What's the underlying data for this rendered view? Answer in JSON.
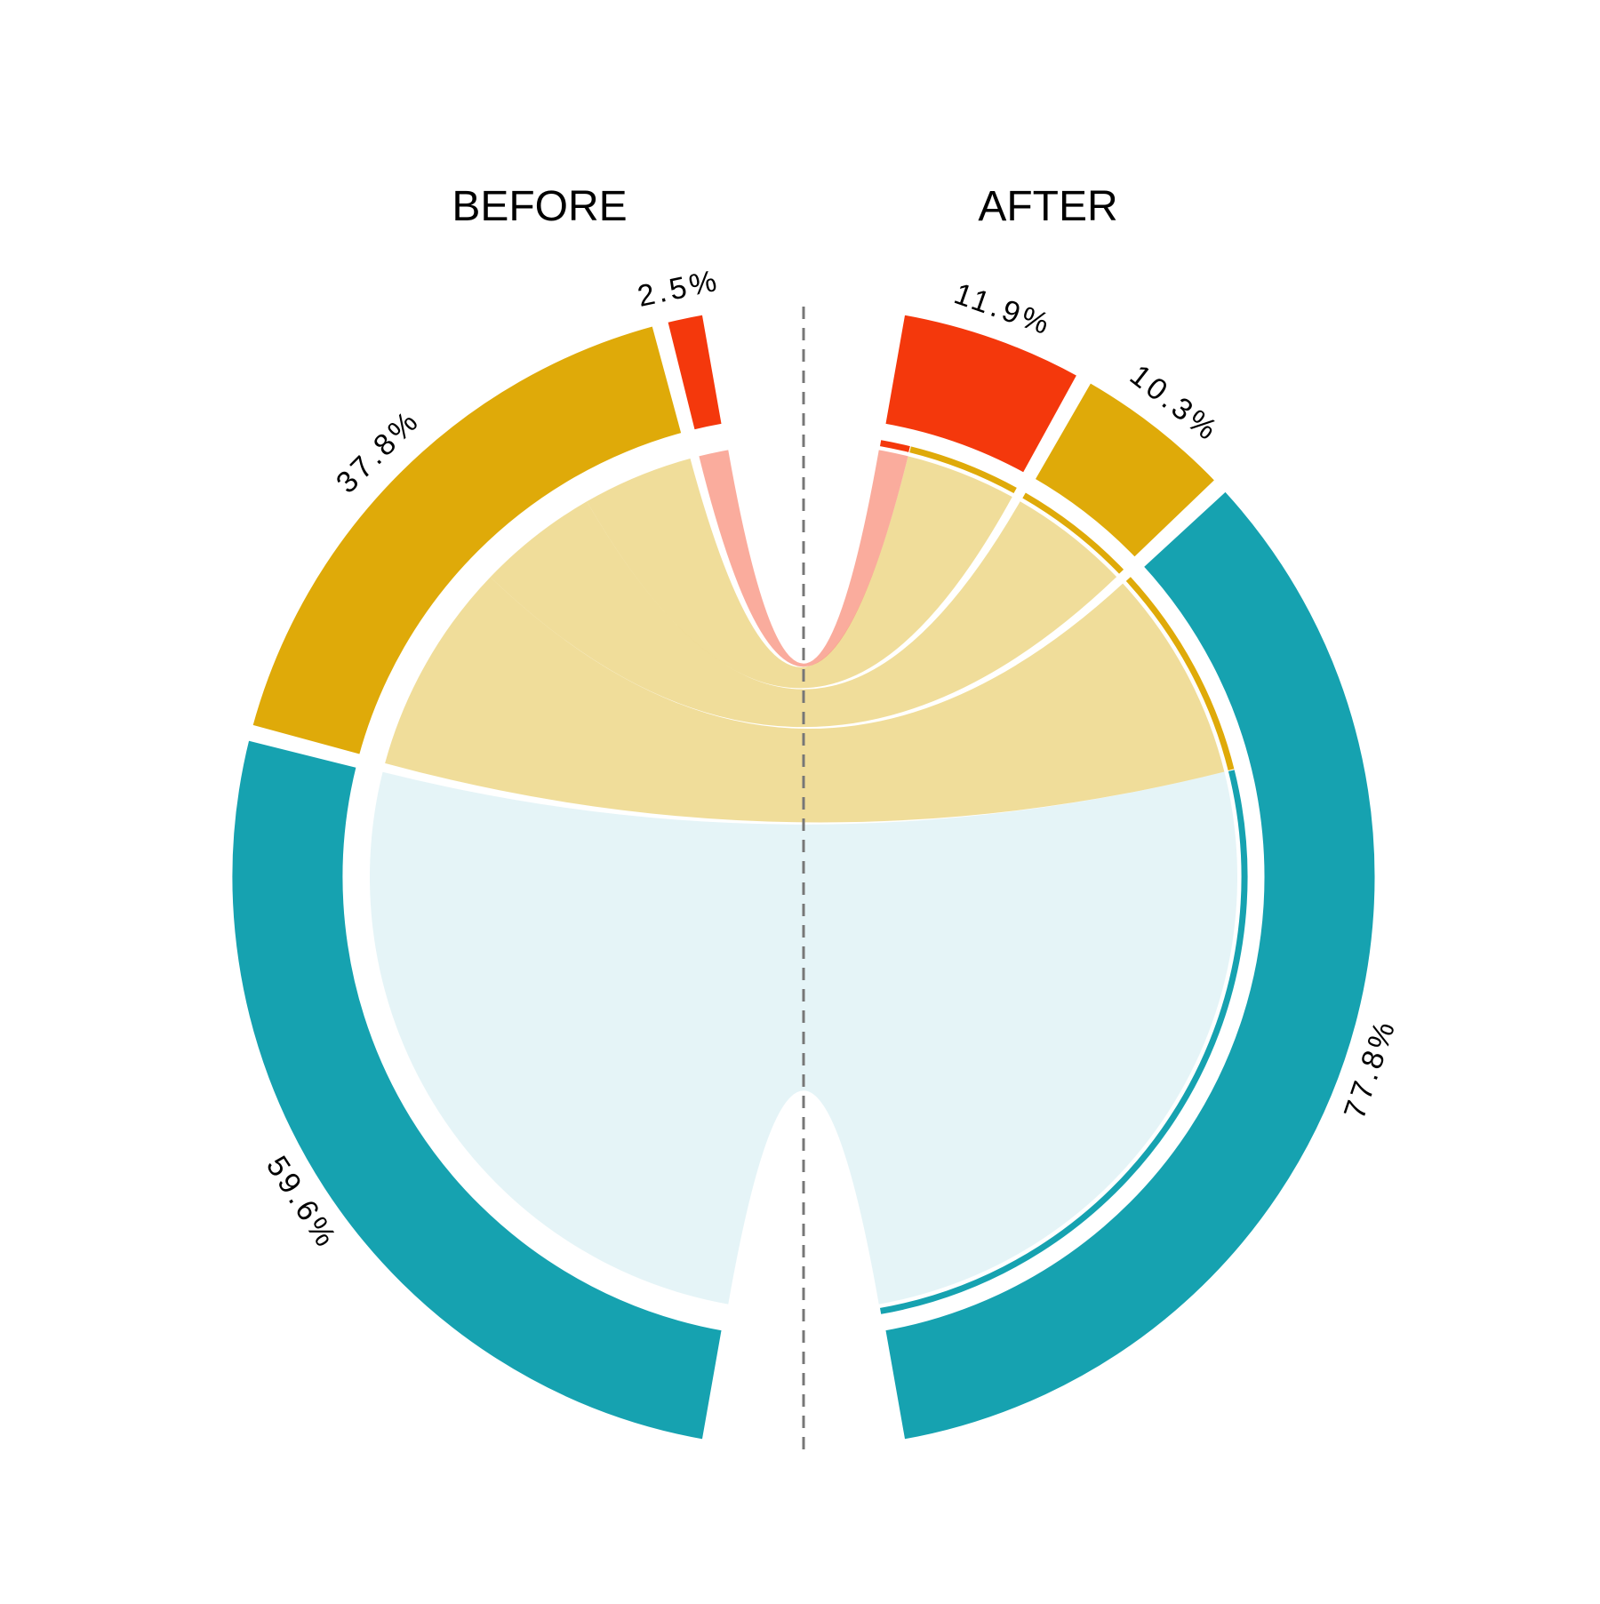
{
  "chart_data": {
    "type": "chord",
    "groups": [
      {
        "title": "BEFORE"
      },
      {
        "title": "AFTER"
      }
    ],
    "colors": {
      "teal": "#16a2b0",
      "gold": "#dfaa09",
      "red": "#f4380c",
      "teal_light": "#dff2f5",
      "gold_light": "#edd584",
      "red_light": "#f99a87"
    },
    "sectors": [
      {
        "id": "before_teal",
        "side": "BEFORE",
        "color": "teal",
        "value": 59.6,
        "label": "59.6%"
      },
      {
        "id": "before_gold",
        "side": "BEFORE",
        "color": "gold",
        "value": 37.8,
        "label": "37.8%"
      },
      {
        "id": "before_red",
        "side": "BEFORE",
        "color": "red",
        "value": 2.5,
        "label": "2.5%"
      },
      {
        "id": "after_red",
        "side": "AFTER",
        "color": "red",
        "value": 11.9,
        "label": "11.9%"
      },
      {
        "id": "after_gold",
        "side": "AFTER",
        "color": "gold",
        "value": 10.3,
        "label": "10.3%"
      },
      {
        "id": "after_teal",
        "side": "AFTER",
        "color": "teal",
        "value": 77.8,
        "label": "77.8%"
      }
    ],
    "flows": [
      {
        "from": "before_teal",
        "to": "after_teal",
        "value": 59.6,
        "color": "teal_light"
      },
      {
        "from": "before_gold",
        "to": "after_red",
        "value": 9.4,
        "color": "gold_light"
      },
      {
        "from": "before_gold",
        "to": "after_gold",
        "value": 10.3,
        "color": "gold_light"
      },
      {
        "from": "before_gold",
        "to": "after_teal",
        "value": 18.1,
        "color": "gold_light"
      },
      {
        "from": "before_red",
        "to": "after_red",
        "value": 2.5,
        "color": "red_light"
      }
    ],
    "divider": "dashed vertical line"
  }
}
